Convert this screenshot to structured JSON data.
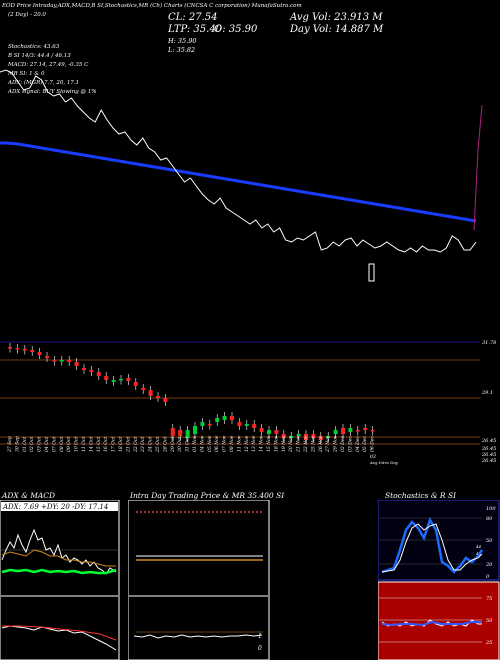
{
  "header": {
    "line1": "EOD Price Intraday,ADX,MACD,B       SI,Stochastics,MR        (Ch) Charts (CNCSA           C                                   corporation) MunafaSutra.com",
    "days": "(2 Day) - 20.0",
    "cl": "CL: 27.54",
    "ltp": "LTP: 35.40",
    "o": "O: 35.90",
    "h": "H: 35.90",
    "l": "L: 35.82",
    "avg_vol": "Avg Vol: 23.913 M",
    "day_vol": "Day Vol: 14.887 M"
  },
  "indicators": {
    "stoch": "Stochastics: 43.63",
    "si": "B          SI 14/3: 44.4  / 46.13",
    "macd": "MACD: 27.14,  27.49, -0.35  C",
    "mr": "MR            SI: 1 & 0",
    "adx": "ADX:                         (MGR) 7.7,  20,  17.1",
    "adx_signal": "ADX  signal:                             BUY Slowing @ 1%"
  },
  "colors": {
    "ma_line": "#1a3cff",
    "price_line": "#ffffff",
    "vol_line": "#aa2288",
    "up": "#00cc33",
    "down": "#ff2222",
    "grid_orange": "#7a3a10",
    "grid_blue": "#1a1a80"
  },
  "chart_data": [
    {
      "type": "line",
      "title": "Price vs Moving Average",
      "series": [],
      "price": [
        62,
        60,
        63,
        72,
        80,
        78,
        66,
        70,
        82,
        86,
        84,
        92,
        88,
        96,
        102,
        108,
        112,
        100,
        110,
        118,
        124,
        122,
        130,
        135,
        128,
        138,
        142,
        150,
        148,
        156,
        164,
        172,
        168,
        176,
        184,
        190,
        194,
        188,
        198,
        202,
        206,
        210,
        214,
        210,
        218,
        214,
        222,
        218,
        230,
        232,
        228,
        230,
        226,
        222,
        240,
        238,
        232,
        236,
        230,
        228,
        236,
        230,
        234,
        238,
        236,
        232,
        236,
        240,
        242,
        238,
        242,
        236,
        240,
        240,
        242,
        238,
        226,
        230,
        240,
        240,
        232
      ],
      "ma": [
        148,
        148,
        148.5,
        149,
        150,
        151,
        152,
        153,
        154,
        155,
        156,
        157,
        158,
        159,
        160,
        161,
        162,
        163,
        164,
        165,
        166,
        167,
        168,
        169,
        170,
        171,
        172,
        173,
        174,
        175,
        176,
        177,
        178,
        179,
        180,
        181,
        182,
        183,
        184,
        185,
        186,
        187,
        188,
        189,
        190,
        191,
        192,
        193,
        194,
        195,
        196,
        197,
        198,
        199,
        200,
        201,
        202,
        203,
        204,
        205,
        206,
        207,
        208,
        209,
        210,
        211,
        212,
        213,
        214,
        215,
        216,
        217,
        218,
        219,
        220,
        221,
        222,
        223,
        224,
        225,
        226
      ]
    },
    {
      "type": "bar",
      "title": "Daily candles",
      "categories": [
        "27 Sep",
        "30 Sep",
        "01 Oct",
        "02 Oct",
        "03 Oct",
        "04 Oct",
        "07 Oct",
        "08 Oct",
        "09 Oct",
        "10 Oct",
        "11 Oct",
        "14 Oct",
        "15 Oct",
        "16 Oct",
        "17 Oct",
        "18 Oct",
        "21 Oct",
        "22 Oct",
        "23 Oct",
        "24 Oct",
        "25 Oct",
        "28 Oct",
        "29 Oct",
        "30 Oct",
        "31 Oct",
        "01 Nov",
        "04 Nov",
        "05 Nov",
        "06 Nov",
        "07 Nov",
        "08 Nov",
        "11 Nov",
        "12 Nov",
        "13 Nov",
        "14 Nov",
        "15 Nov",
        "18 Nov",
        "19 Nov",
        "20 Nov",
        "21 Nov",
        "22 Nov",
        "25 Nov",
        "26 Nov",
        "27 Nov",
        "29 Nov",
        "02 Dec",
        "03 Dec",
        "04 Dec",
        "05 Dec",
        "06 Dec"
      ],
      "y_labels": [
        "31.78",
        "29.1",
        "26.45",
        "26.45",
        "26.45",
        "26.45"
      ]
    }
  ],
  "panels": {
    "adx_title": "ADX  & MACD",
    "adx_values": "ADX: 7.69  +DY: 20  -DY: 17.14",
    "intra_title": "Intra  Day Trading Price  & MR  35.400   SI",
    "stoch_title": "Stochastics & R            SI",
    "stoch_ticks": [
      "100",
      "80",
      "50",
      "20",
      "0"
    ],
    "stoch_vals": [
      "44",
      "46"
    ],
    "si_ticks": [
      "75",
      "50",
      "25"
    ],
    "intra_nums": [
      "1",
      "0"
    ],
    "bottom_note": "03",
    "bottom_note2": "Avg  Intra  Day"
  }
}
